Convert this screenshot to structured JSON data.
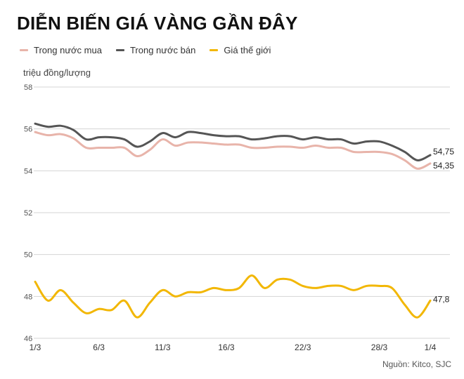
{
  "title": "DIỄN BIẾN GIÁ VÀNG GẦN ĐÂY",
  "unit_label": "triệu đồng/lượng",
  "source": "Nguồn: Kitco, SJC",
  "legend": [
    {
      "label": "Trong nước mua",
      "color": "#e8b4aa"
    },
    {
      "label": "Trong nước bán",
      "color": "#555555"
    },
    {
      "label": "Giá thế giới",
      "color": "#f2b705"
    }
  ],
  "chart_data": {
    "type": "line",
    "ylabel": "triệu đồng/lượng",
    "ylim": [
      46,
      58
    ],
    "yticks": [
      "58",
      "56",
      "54",
      "52",
      "50",
      "48",
      "46"
    ],
    "x_index_range": [
      0,
      31
    ],
    "xticks": [
      {
        "label": "1/3",
        "i": 0
      },
      {
        "label": "6/3",
        "i": 5
      },
      {
        "label": "11/3",
        "i": 10
      },
      {
        "label": "16/3",
        "i": 15
      },
      {
        "label": "22/3",
        "i": 21
      },
      {
        "label": "28/3",
        "i": 27
      },
      {
        "label": "1/4",
        "i": 31
      }
    ],
    "grid": true,
    "series": [
      {
        "name": "Trong nước bán",
        "color": "#555555",
        "end_label": "54,75",
        "values": [
          56.25,
          56.1,
          56.15,
          55.95,
          55.5,
          55.6,
          55.6,
          55.5,
          55.15,
          55.4,
          55.8,
          55.6,
          55.85,
          55.8,
          55.7,
          55.65,
          55.65,
          55.5,
          55.55,
          55.65,
          55.65,
          55.5,
          55.6,
          55.5,
          55.5,
          55.3,
          55.4,
          55.4,
          55.2,
          54.9,
          54.5,
          54.75
        ]
      },
      {
        "name": "Trong nước mua",
        "color": "#e8b4aa",
        "end_label": "54,35",
        "values": [
          55.85,
          55.7,
          55.75,
          55.55,
          55.1,
          55.1,
          55.1,
          55.1,
          54.7,
          55.0,
          55.5,
          55.2,
          55.35,
          55.35,
          55.3,
          55.25,
          55.25,
          55.1,
          55.1,
          55.15,
          55.15,
          55.1,
          55.2,
          55.1,
          55.1,
          54.9,
          54.9,
          54.9,
          54.8,
          54.5,
          54.1,
          54.35
        ]
      },
      {
        "name": "Giá thế giới",
        "color": "#f2b705",
        "end_label": "47,8",
        "values": [
          48.7,
          47.8,
          48.3,
          47.7,
          47.2,
          47.4,
          47.35,
          47.8,
          47.0,
          47.7,
          48.3,
          48.0,
          48.2,
          48.2,
          48.4,
          48.3,
          48.4,
          49.0,
          48.4,
          48.8,
          48.8,
          48.5,
          48.4,
          48.5,
          48.5,
          48.3,
          48.5,
          48.5,
          48.4,
          47.6,
          47.0,
          47.8
        ]
      }
    ]
  }
}
